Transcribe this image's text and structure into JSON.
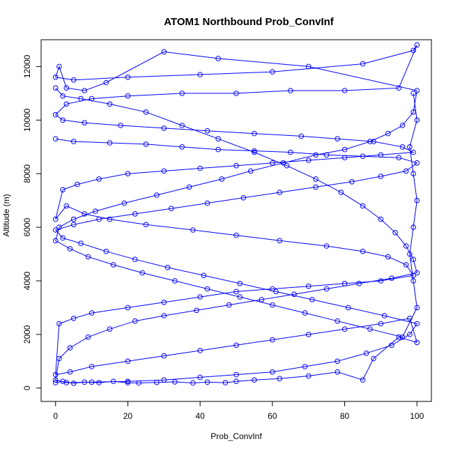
{
  "chart_data": {
    "type": "line",
    "title": "ATOM1 Northbound Prob_ConvInf",
    "xlabel": "Prob_ConvInf",
    "ylabel": "Altitude (m)",
    "xlim": [
      -4,
      104
    ],
    "ylim": [
      -500,
      13000
    ],
    "xticks": [
      0,
      20,
      40,
      60,
      80,
      100
    ],
    "yticks": [
      0,
      2000,
      4000,
      6000,
      8000,
      10000,
      12000
    ],
    "xtick_labels": [
      "0",
      "20",
      "40",
      "60",
      "80",
      "100"
    ],
    "ytick_labels": [
      "0",
      "2000",
      "4000",
      "6000",
      "8000",
      "10000",
      "12000"
    ],
    "grid": false,
    "color": "#0000ff",
    "marker": "open-circle",
    "series": [
      {
        "points": [
          [
            0,
            200
          ],
          [
            2,
            250
          ],
          [
            5,
            180
          ],
          [
            8,
            220
          ],
          [
            12,
            200
          ],
          [
            16,
            250
          ],
          [
            20,
            200
          ],
          [
            23,
            190
          ],
          [
            28,
            210
          ],
          [
            33,
            230
          ],
          [
            38,
            190
          ],
          [
            42,
            220
          ],
          [
            47,
            200
          ],
          [
            50,
            250
          ],
          [
            55,
            300
          ],
          [
            62,
            350
          ],
          [
            70,
            450
          ],
          [
            78,
            600
          ],
          [
            85,
            300
          ],
          [
            88,
            1100
          ],
          [
            95,
            1900
          ],
          [
            100,
            1700
          ],
          [
            98,
            2600
          ],
          [
            90,
            2400
          ],
          [
            80,
            2200
          ],
          [
            70,
            2000
          ],
          [
            60,
            1800
          ],
          [
            50,
            1600
          ],
          [
            40,
            1400
          ],
          [
            30,
            1200
          ],
          [
            20,
            1000
          ],
          [
            10,
            800
          ],
          [
            4,
            600
          ],
          [
            0,
            500
          ],
          [
            1,
            2400
          ],
          [
            5,
            2600
          ],
          [
            10,
            2800
          ],
          [
            20,
            3000
          ],
          [
            30,
            3200
          ],
          [
            40,
            3400
          ],
          [
            50,
            3600
          ],
          [
            60,
            3700
          ],
          [
            70,
            3800
          ],
          [
            80,
            3900
          ],
          [
            90,
            4000
          ],
          [
            99,
            4200
          ],
          [
            97,
            4600
          ],
          [
            92,
            4900
          ],
          [
            85,
            5100
          ],
          [
            75,
            5300
          ],
          [
            62,
            5500
          ],
          [
            50,
            5700
          ],
          [
            38,
            5900
          ],
          [
            25,
            6100
          ],
          [
            15,
            6300
          ],
          [
            8,
            6500
          ],
          [
            3,
            6800
          ],
          [
            0,
            6300
          ],
          [
            2,
            7400
          ],
          [
            6,
            7600
          ],
          [
            12,
            7800
          ],
          [
            20,
            8000
          ],
          [
            30,
            8100
          ],
          [
            40,
            8200
          ],
          [
            50,
            8300
          ],
          [
            60,
            8400
          ],
          [
            70,
            8500
          ],
          [
            80,
            8600
          ],
          [
            90,
            8700
          ],
          [
            99,
            8800
          ],
          [
            96,
            9000
          ],
          [
            88,
            9200
          ],
          [
            78,
            9300
          ],
          [
            68,
            9400
          ],
          [
            55,
            9500
          ],
          [
            42,
            9600
          ],
          [
            30,
            9700
          ],
          [
            18,
            9800
          ],
          [
            8,
            9900
          ],
          [
            2,
            10000
          ],
          [
            0,
            10200
          ],
          [
            3,
            10600
          ],
          [
            10,
            10800
          ],
          [
            20,
            10900
          ],
          [
            35,
            11000
          ],
          [
            50,
            11000
          ],
          [
            65,
            11100
          ],
          [
            80,
            11100
          ],
          [
            95,
            11200
          ],
          [
            100,
            12800
          ],
          [
            99,
            12600
          ],
          [
            85,
            12100
          ],
          [
            60,
            11800
          ],
          [
            40,
            11700
          ],
          [
            20,
            11600
          ],
          [
            5,
            11500
          ],
          [
            0,
            11600
          ],
          [
            1,
            12000
          ],
          [
            3,
            11200
          ],
          [
            8,
            11100
          ],
          [
            14,
            11400
          ],
          [
            30,
            12550
          ],
          [
            45,
            12300
          ],
          [
            70,
            12000
          ],
          [
            100,
            11100
          ],
          [
            99,
            10300
          ],
          [
            96,
            9800
          ],
          [
            92,
            9500
          ],
          [
            87,
            9200
          ],
          [
            80,
            8900
          ],
          [
            72,
            8700
          ],
          [
            63,
            8400
          ],
          [
            54,
            8100
          ],
          [
            46,
            7800
          ],
          [
            37,
            7500
          ],
          [
            28,
            7200
          ],
          [
            19,
            6900
          ],
          [
            11,
            6600
          ],
          [
            5,
            6300
          ],
          [
            1,
            6000
          ],
          [
            0,
            5500
          ],
          [
            4,
            5200
          ],
          [
            9,
            4900
          ],
          [
            16,
            4600
          ],
          [
            24,
            4300
          ],
          [
            33,
            4000
          ],
          [
            42,
            3700
          ],
          [
            51,
            3400
          ],
          [
            60,
            3100
          ],
          [
            69,
            2800
          ],
          [
            78,
            2500
          ],
          [
            87,
            2200
          ],
          [
            96,
            1900
          ],
          [
            100,
            3000
          ],
          [
            99,
            4000
          ],
          [
            98,
            5000
          ],
          [
            99,
            6000
          ],
          [
            100,
            7000
          ],
          [
            99,
            8000
          ],
          [
            98,
            9000
          ],
          [
            100,
            10000
          ],
          [
            99,
            11000
          ]
        ]
      },
      {
        "points": [
          [
            0,
            9300
          ],
          [
            5,
            9200
          ],
          [
            15,
            9150
          ],
          [
            25,
            9100
          ],
          [
            35,
            9000
          ],
          [
            45,
            8900
          ],
          [
            55,
            8850
          ],
          [
            65,
            8800
          ],
          [
            75,
            8700
          ],
          [
            85,
            8650
          ],
          [
            95,
            8600
          ],
          [
            100,
            8400
          ],
          [
            97,
            8100
          ],
          [
            90,
            7900
          ],
          [
            82,
            7700
          ],
          [
            72,
            7500
          ],
          [
            62,
            7300
          ],
          [
            52,
            7100
          ],
          [
            42,
            6900
          ],
          [
            32,
            6700
          ],
          [
            22,
            6500
          ],
          [
            12,
            6300
          ],
          [
            5,
            6100
          ],
          [
            0,
            5900
          ],
          [
            2,
            5600
          ],
          [
            7,
            5400
          ],
          [
            14,
            5100
          ],
          [
            22,
            4800
          ],
          [
            31,
            4500
          ],
          [
            41,
            4200
          ],
          [
            51,
            3900
          ],
          [
            61,
            3600
          ],
          [
            71,
            3300
          ],
          [
            81,
            3000
          ],
          [
            91,
            2700
          ],
          [
            100,
            2400
          ],
          [
            98,
            2000
          ],
          [
            93,
            1600
          ],
          [
            86,
            1300
          ],
          [
            78,
            1000
          ],
          [
            69,
            800
          ],
          [
            60,
            600
          ],
          [
            50,
            500
          ],
          [
            40,
            400
          ],
          [
            30,
            300
          ],
          [
            20,
            250
          ],
          [
            10,
            220
          ],
          [
            3,
            200
          ],
          [
            0,
            300
          ],
          [
            1,
            1100
          ],
          [
            4,
            1500
          ],
          [
            9,
            1900
          ],
          [
            15,
            2200
          ],
          [
            22,
            2500
          ],
          [
            30,
            2700
          ],
          [
            39,
            2900
          ],
          [
            48,
            3100
          ],
          [
            57,
            3300
          ],
          [
            66,
            3500
          ],
          [
            75,
            3700
          ],
          [
            84,
            3900
          ],
          [
            93,
            4100
          ],
          [
            100,
            4300
          ],
          [
            99,
            4800
          ],
          [
            97,
            5300
          ],
          [
            94,
            5800
          ],
          [
            90,
            6300
          ],
          [
            85,
            6800
          ],
          [
            79,
            7300
          ],
          [
            72,
            7800
          ],
          [
            64,
            8300
          ],
          [
            55,
            8800
          ],
          [
            45,
            9300
          ],
          [
            35,
            9800
          ],
          [
            25,
            10300
          ],
          [
            15,
            10600
          ],
          [
            7,
            10800
          ],
          [
            2,
            10900
          ],
          [
            0,
            11200
          ]
        ]
      }
    ]
  }
}
